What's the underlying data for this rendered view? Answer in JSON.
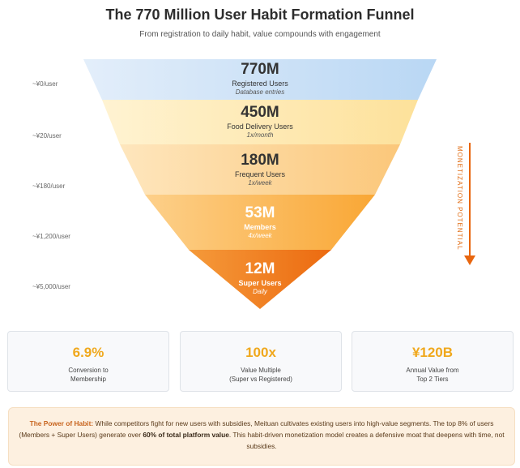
{
  "title": "The 770 Million User Habit Formation Funnel",
  "subtitle": "From registration to daily habit, value compounds with engagement",
  "tiers": [
    {
      "value": "770M",
      "name": "Registered Users",
      "freq": "Database entries",
      "per_user_value": "~¥0/user",
      "color": "#cfe3f7"
    },
    {
      "value": "450M",
      "name": "Food Delivery Users",
      "freq": "1x/month",
      "per_user_value": "~¥20/user",
      "color": "#fde7b0"
    },
    {
      "value": "180M",
      "name": "Frequent Users",
      "freq": "1x/week",
      "per_user_value": "~¥180/user",
      "color": "#fdd393"
    },
    {
      "value": "53M",
      "name": "Members",
      "freq": "4x/week",
      "per_user_value": "~¥1,200/user",
      "color": "#fbb450"
    },
    {
      "value": "12M",
      "name": "Super Users",
      "freq": "Daily",
      "per_user_value": "~¥5,000/user",
      "color": "#f07a1a"
    }
  ],
  "side_label": "MONETIZATION POTENTIAL",
  "stats": [
    {
      "value": "6.9%",
      "label_line1": "Conversion to",
      "label_line2": "Membership"
    },
    {
      "value": "100x",
      "label_line1": "Value Multiple",
      "label_line2": "(Super vs Registered)"
    },
    {
      "value": "¥120B",
      "label_line1": "Annual Value from",
      "label_line2": "Top 2 Tiers"
    }
  ],
  "note": {
    "lead": "The Power of Habit:",
    "part1": " While competitors fight for new users with subsidies, Meituan cultivates existing users into high-value segments. The top 8% of users (Members + Super Users) generate over ",
    "highlight": "60% of total platform value",
    "part2": ". This habit-driven monetization model creates a defensive moat that deepens with time, not subsidies."
  },
  "colors": {
    "accent": "#f0a81c",
    "arrow": "#e8660f"
  }
}
